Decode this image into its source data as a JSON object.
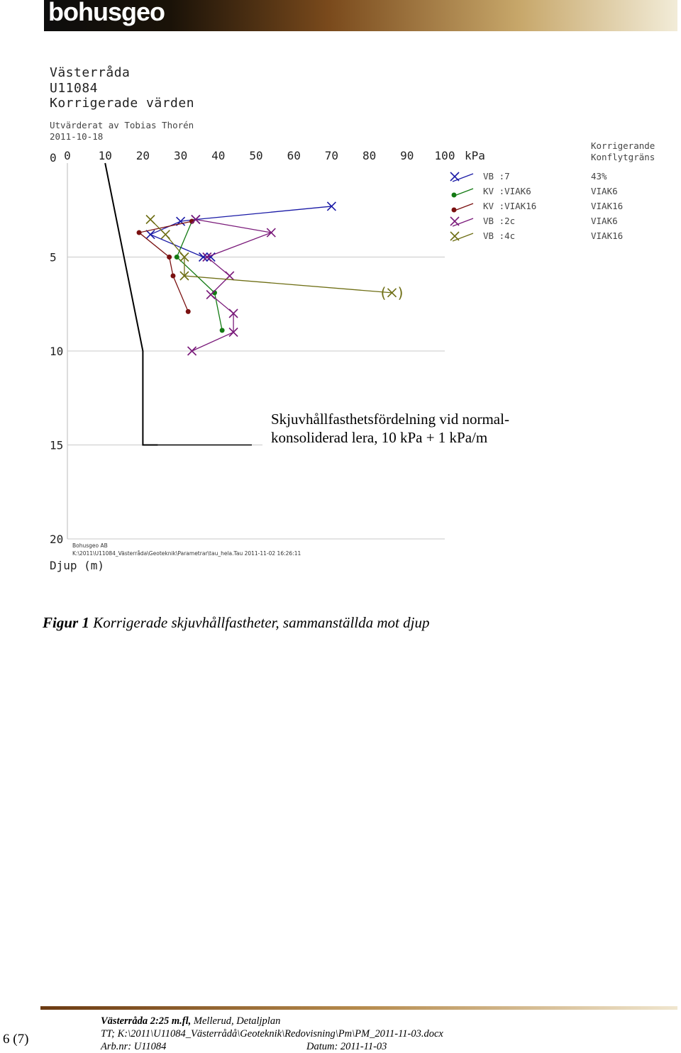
{
  "header": {
    "logo": "bohusgeo",
    "project": "Västerråda",
    "project_no": "U11084",
    "title": "Korrigerade värden",
    "evaluated_by": "Utvärderat av Tobias Thorén",
    "date": "2011-10-18"
  },
  "chart_data": {
    "type": "scatter",
    "x_unit": "kPa",
    "x_ticks": [
      "0",
      "10",
      "20",
      "30",
      "40",
      "50",
      "60",
      "70",
      "80",
      "90",
      "100"
    ],
    "y_ticks": [
      "0",
      "5",
      "10",
      "15",
      "20"
    ],
    "xlim": [
      0,
      100
    ],
    "ylim": [
      0,
      20
    ],
    "xlabel": "kPa",
    "ylabel": "Djup (m)",
    "legend_header": [
      "Korrigerande",
      "Konflytgräns"
    ],
    "legend_position": "top-right",
    "series": [
      {
        "name": "VB :7",
        "correction": "43%",
        "color": "#1a1aa6",
        "marker": "x",
        "x": [
          70,
          34,
          30,
          22,
          36,
          38
        ],
        "y": [
          2.3,
          3.0,
          3.1,
          3.8,
          5.0,
          5.0
        ]
      },
      {
        "name": "KV :VIAK6",
        "correction": "VIAK6",
        "color": "#137a13",
        "marker": "dot",
        "x": [
          33,
          29,
          39,
          41
        ],
        "y": [
          3.1,
          5.0,
          6.9,
          8.9
        ]
      },
      {
        "name": "KV :VIAK16",
        "correction": "VIAK16",
        "color": "#7a1010",
        "marker": "dot",
        "x": [
          33,
          19,
          27,
          28,
          32
        ],
        "y": [
          3.1,
          3.7,
          5.0,
          6.0,
          7.9
        ]
      },
      {
        "name": "VB :2c",
        "correction": "VIAK6",
        "color": "#7a1a7a",
        "marker": "x",
        "x": [
          34,
          54,
          37,
          43,
          38,
          44,
          44,
          33
        ],
        "y": [
          3.0,
          3.7,
          5.0,
          6.0,
          7.0,
          8.0,
          9.0,
          10.0
        ]
      },
      {
        "name": "VB :4c",
        "correction": "VIAK16",
        "color": "#6e6e14",
        "marker": "x",
        "x": [
          22,
          26,
          31,
          31,
          86
        ],
        "y": [
          3.0,
          3.8,
          5.0,
          6.0,
          6.9
        ],
        "bracketed_last": true
      }
    ],
    "reference_line": {
      "label_line1": "Skjuvhållfasthetsfördelning vid normal-",
      "label_line2": "konsoliderad lera, 10 kPa + 1 kPa/m",
      "x": [
        10,
        20,
        20,
        24
      ],
      "y": [
        0,
        10,
        15,
        15
      ]
    },
    "footer_small": [
      "Bohusgeo AB",
      "K:\\2011\\U11084_Västerråda\\Geoteknik\\Parametrar\\tau_hela.Tau  2011-11-02 16:26:11"
    ],
    "grid": false
  },
  "caption": {
    "label": "Figur 1",
    "text": "Korrigerade skjuvhållfastheter, sammanställda mot djup"
  },
  "footer": {
    "page": "6 (7)",
    "line1_bold": "Västerråda 2:25 m.fl,",
    "line1_rest": "Mellerud, Detaljplan",
    "line2": "TT;   K:\\2011\\U11084_Västerrådå\\Geoteknik\\Redovisning\\Pm\\PM_2011-11-03.docx",
    "arbnr": "Arb.nr: U11084",
    "datum": "Datum: 2011-11-03"
  }
}
